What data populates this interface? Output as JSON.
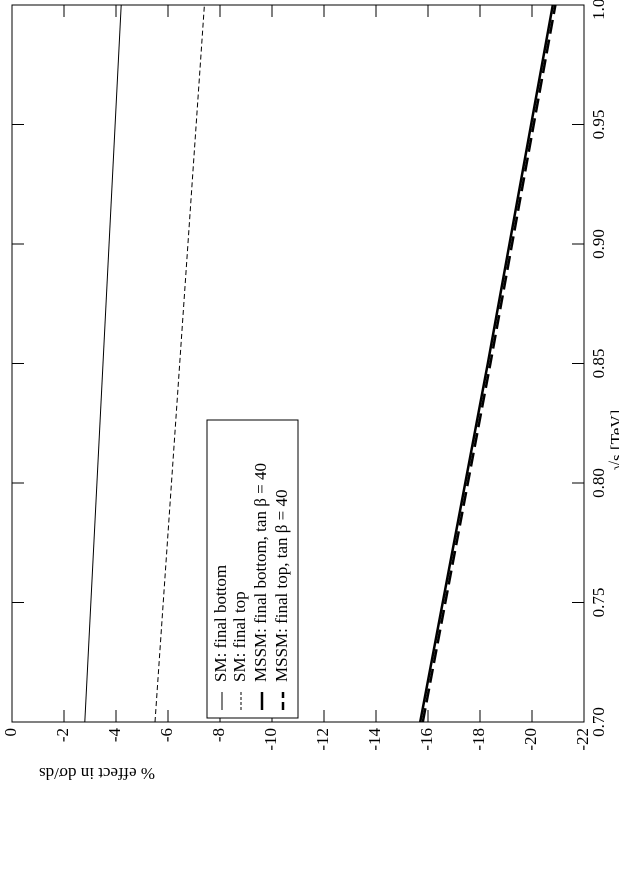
{
  "chart_data": {
    "type": "line",
    "xlabel": "√s  [TeV]",
    "ylabel": "% effect in dσ/ds",
    "x": [
      0.7,
      0.85,
      1.0
    ],
    "series": [
      {
        "name": "SM: final bottom",
        "color": "#000000",
        "line_style": "solid",
        "line_width": 1,
        "values": [
          -2.8,
          -3.5,
          -4.2
        ]
      },
      {
        "name": "SM: final top",
        "color": "#000000",
        "line_style": "dashed",
        "line_width": 1,
        "values": [
          -5.5,
          -6.45,
          -7.4
        ]
      },
      {
        "name": "MSSM: final bottom, tan β = 40",
        "color": "#000000",
        "line_style": "solid",
        "line_width": 2.5,
        "values": [
          -15.7,
          -18.3,
          -20.8
        ]
      },
      {
        "name": "MSSM: final top, tan β = 40",
        "color": "#000000",
        "line_style": "dashed",
        "line_width": 2.5,
        "values": [
          -15.8,
          -18.4,
          -20.9
        ]
      }
    ],
    "xlim": [
      0.7,
      1.0
    ],
    "xticks": [
      {
        "value": 0.7,
        "label": "0.70"
      },
      0.75,
      {
        "value": 0.8,
        "label": "0.80"
      },
      0.85,
      {
        "value": 0.9,
        "label": "0.90"
      },
      0.95,
      {
        "value": 1.0,
        "label": "1.00"
      }
    ],
    "ylim": [
      -22,
      0
    ],
    "yticks": [
      0,
      -2,
      -4,
      -6,
      -8,
      -10,
      -12,
      -14,
      -16,
      -18,
      -20,
      -22
    ],
    "rotation": -90
  }
}
